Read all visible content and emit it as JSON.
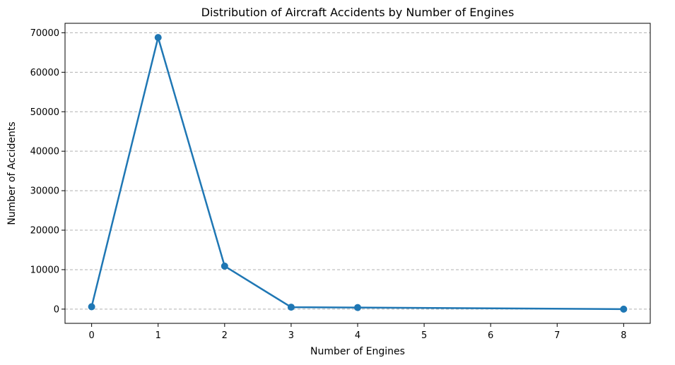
{
  "chart_data": {
    "type": "line",
    "title": "Distribution of Aircraft Accidents by Number of Engines",
    "xlabel": "Number of Engines",
    "ylabel": "Number of Accidents",
    "x": [
      0,
      1,
      2,
      3,
      4,
      5,
      6,
      7,
      8
    ],
    "x_tick_labels": [
      "0",
      "1",
      "2",
      "3",
      "4",
      "5",
      "6",
      "7",
      "8"
    ],
    "series": [
      {
        "x": [
          0,
          1,
          2,
          3,
          4,
          8
        ],
        "values": [
          600,
          68800,
          10900,
          500,
          400,
          0
        ],
        "color": "#1f77b4",
        "marker": "circle"
      }
    ],
    "ylim": [
      -3600,
      72400
    ],
    "xlim": [
      -0.4,
      8.4
    ],
    "y_ticks": [
      0,
      10000,
      20000,
      30000,
      40000,
      50000,
      60000,
      70000
    ],
    "y_tick_labels": [
      "0",
      "10000",
      "20000",
      "30000",
      "40000",
      "50000",
      "60000",
      "70000"
    ],
    "grid": "horizontal dashed",
    "legend": "none"
  }
}
